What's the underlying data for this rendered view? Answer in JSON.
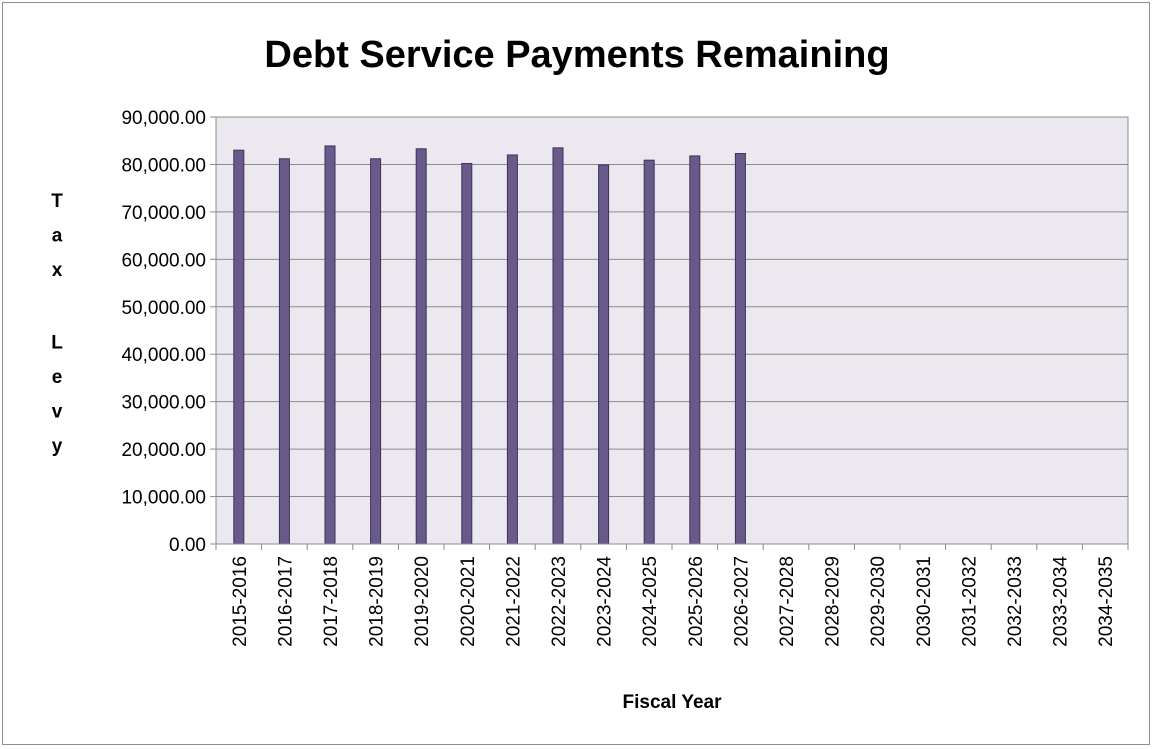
{
  "chart_data": {
    "type": "bar",
    "title": "Debt Service Payments Remaining",
    "xlabel": "Fiscal Year",
    "ylabel": "Tax Levy",
    "ylim": [
      0,
      90000
    ],
    "ytick_step": 10000,
    "ytick_labels": [
      "0.00",
      "10,000.00",
      "20,000.00",
      "30,000.00",
      "40,000.00",
      "50,000.00",
      "60,000.00",
      "70,000.00",
      "80,000.00",
      "90,000.00"
    ],
    "grid": true,
    "legend": "none",
    "categories": [
      "2015-2016",
      "2016-2017",
      "2017-2018",
      "2018-2019",
      "2019-2020",
      "2020-2021",
      "2021-2022",
      "2022-2023",
      "2023-2024",
      "2024-2025",
      "2025-2026",
      "2026-2027",
      "2027-2028",
      "2028-2029",
      "2029-2030",
      "2030-2031",
      "2031-2032",
      "2032-2033",
      "2033-2034",
      "2034-2035"
    ],
    "values": [
      83000,
      81200,
      83900,
      81200,
      83300,
      80200,
      82000,
      83500,
      79900,
      80900,
      81800,
      82300,
      0,
      0,
      0,
      0,
      0,
      0,
      0,
      0
    ],
    "colors": {
      "bar_fill": "#6a5a8c",
      "bar_stroke": "#3e3358",
      "plot_bg": "#ebe8ef",
      "grid": "#8c8c8c"
    }
  }
}
